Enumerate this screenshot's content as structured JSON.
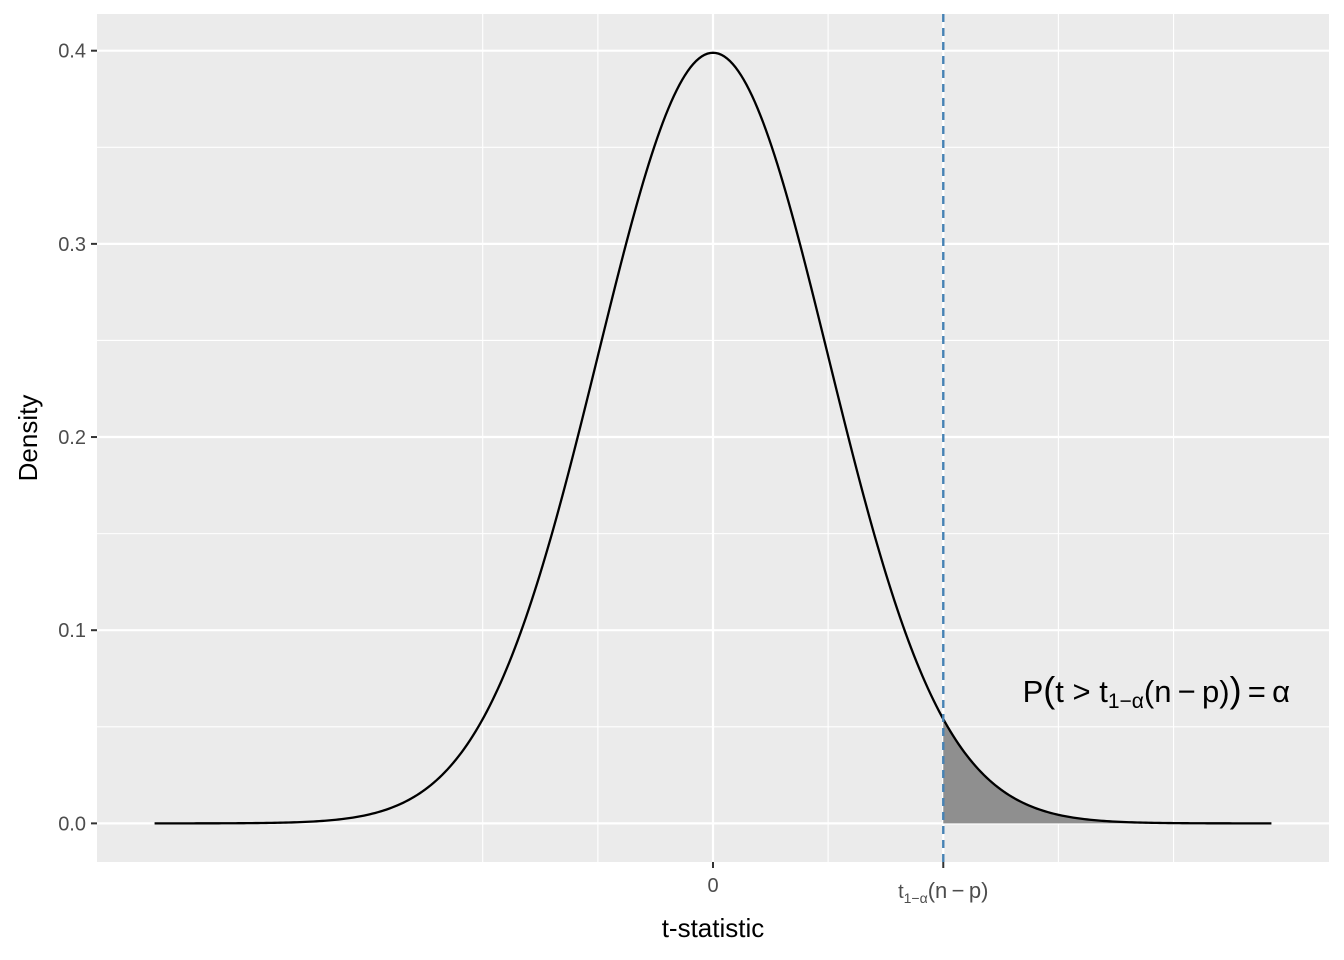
{
  "chart_data": {
    "type": "area",
    "distribution": "t",
    "x": [
      -4.85,
      -4.5,
      -4.0,
      -3.5,
      -3.0,
      -2.5,
      -2.0,
      -1.5,
      -1.0,
      -0.5,
      0.0,
      0.5,
      1.0,
      1.5,
      2.0,
      2.5,
      3.0,
      3.5,
      4.0,
      4.5,
      4.85
    ],
    "y": [
      0.0003,
      0.0007,
      0.0018,
      0.0054,
      0.0125,
      0.0305,
      0.0585,
      0.1295,
      0.242,
      0.352,
      0.3989,
      0.352,
      0.242,
      0.1295,
      0.0585,
      0.0305,
      0.0125,
      0.0054,
      0.0018,
      0.0007,
      0.0003
    ],
    "critical_value": 2.0,
    "shaded_region": "x > critical_value",
    "xlim": [
      -5.35,
      5.35
    ],
    "ylim": [
      -0.02,
      0.419
    ],
    "y_ticks": [
      0.0,
      0.1,
      0.2,
      0.3,
      0.4
    ],
    "y_tick_labels": [
      "0.0",
      "0.1",
      "0.2",
      "0.3",
      "0.4"
    ],
    "x_ticks": [
      0.0,
      2.0
    ],
    "x_tick_labels": [
      "0",
      ""
    ],
    "x_minor_grid": [
      -2.0,
      -1.0,
      1.0,
      3.0,
      4.0
    ],
    "x_tick_critical": {
      "main": "t",
      "sub": "1−α",
      "rest": "(n − p)"
    },
    "xlabel": "t-statistic",
    "ylabel": "Density",
    "annotation": {
      "x": 3.85,
      "y": 0.065,
      "prefix": "P",
      "open_paren": "(",
      "t_gt": "t > t",
      "sub": "1−α",
      "rest": "(n − p)",
      "close_paren": ")",
      "equals": " = α"
    },
    "grid": true,
    "legend": "none",
    "colors": {
      "panel_background": "#ebebeb",
      "grid": "#ffffff",
      "curve": "#000000",
      "shade": "#8f8f8f",
      "critical_line": "#4682b4",
      "tick_text": "#4d4d4d",
      "tick_mark": "#333333"
    }
  }
}
